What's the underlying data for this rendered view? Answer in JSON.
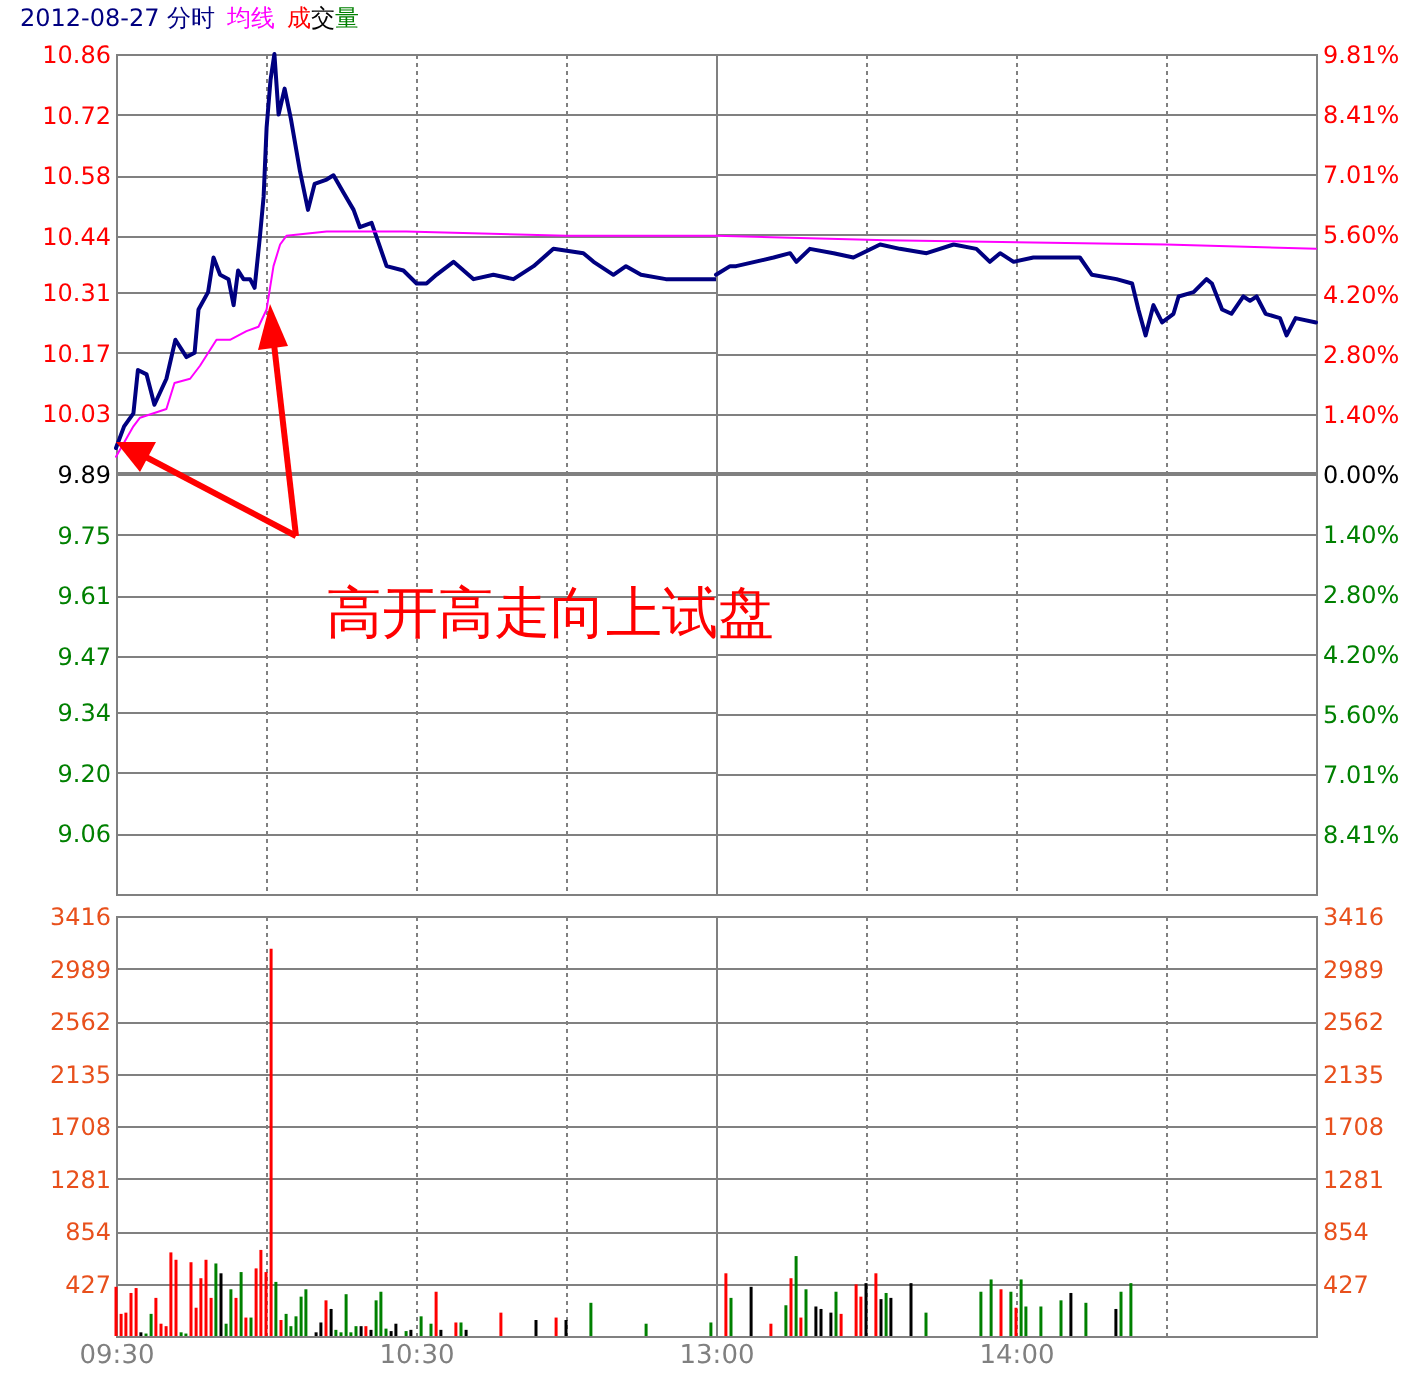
{
  "chart_data": [
    {
      "type": "line",
      "title": "2012-08-27 分时",
      "legend": "top",
      "grid": true,
      "tick_labels": "y",
      "annotations": [
        "高开高走向上试盘"
      ],
      "xlim": [
        9.5,
        11.5
      ],
      "xticks": [
        9.5,
        10,
        10.5,
        11
      ],
      "ylim": [
        8.92,
        10.86
      ],
      "yticks": [
        9.06,
        {
          "value": 9.2,
          "label": "9.20"
        },
        9.34,
        9.47,
        9.61,
        9.75,
        9.89,
        10.03,
        10.17,
        10.31,
        10.44,
        10.58,
        10.72,
        10.86
      ],
      "ref_lines": [
        {
          "axis": "y",
          "value": 9.89,
          "color": "#808080"
        }
      ],
      "series": [
        {
          "color": "#000080",
          "x": [
            9.5,
            9.527,
            9.558,
            9.573,
            9.602,
            9.628,
            9.668,
            9.698,
            9.735,
            9.762,
            9.775,
            9.807,
            9.825,
            9.847,
            9.875,
            9.892,
            9.907,
            9.925,
            9.947,
            9.962,
            9.98,
            9.992,
            10.002,
            10.015,
            10.028,
            10.042,
            10.062,
            10.083,
            10.113,
            10.14,
            10.162,
            10.202,
            10.225,
            10.258,
            10.292,
            10.313,
            10.352,
            10.402,
            10.458,
            10.502,
            10.535,
            10.568,
            10.625,
            10.692,
            10.758,
            10.825,
            10.892,
            10.958,
            11.058,
            11.092,
            11.158,
            11.2,
            11.25,
            11.333,
            11.5
          ],
          "values": [
            9.95,
            10.0,
            10.03,
            10.13,
            10.12,
            10.05,
            10.11,
            10.2,
            10.16,
            10.17,
            10.27,
            10.31,
            10.39,
            10.35,
            10.34,
            10.28,
            10.36,
            10.34,
            10.34,
            10.32,
            10.44,
            10.53,
            10.69,
            10.8,
            10.86,
            10.72,
            10.78,
            10.71,
            10.59,
            10.5,
            10.56,
            10.57,
            10.58,
            10.54,
            10.5,
            10.46,
            10.47,
            10.37,
            10.36,
            10.33,
            10.33,
            10.35,
            10.38,
            10.34,
            10.35,
            10.34,
            10.37,
            10.41,
            10.4,
            10.38,
            10.35,
            10.37,
            10.35,
            10.34,
            10.34
          ]
        },
        {
          "name": "均线",
          "color": "#ff00ff",
          "x": [
            9.5,
            9.558,
            9.58,
            9.668,
            9.695,
            9.747,
            9.78,
            9.835,
            9.88,
            9.935,
            9.975,
            10.002,
            10.025,
            10.047,
            10.068,
            10.202,
            10.292,
            10.468,
            11.002,
            11.5
          ],
          "values": [
            9.93,
            10.0,
            10.02,
            10.04,
            10.1,
            10.11,
            10.14,
            10.2,
            10.2,
            10.22,
            10.23,
            10.27,
            10.37,
            10.42,
            10.44,
            10.45,
            10.45,
            10.45,
            10.44,
            10.44
          ]
        }
      ]
    },
    {
      "type": "line",
      "grid": true,
      "tick_labels": "y",
      "xlim": [
        13,
        15
      ],
      "xticks": [
        13,
        13.5,
        14,
        14.5
      ],
      "ylim": [
        8.92,
        10.86
      ],
      "y2lim": [
        -9.81,
        9.81
      ],
      "y2ticks": [
        {
          "value": -8.41,
          "label": "8.41%"
        },
        {
          "value": -7.01,
          "label": "7.01%"
        },
        {
          "value": -5.6,
          "label": "5.60%"
        },
        {
          "value": -4.2,
          "label": "4.20%"
        },
        {
          "value": -2.8,
          "label": "2.80%"
        },
        {
          "value": -1.4,
          "label": "1.40%"
        },
        {
          "value": 0,
          "label": "0.00%"
        },
        {
          "value": 1.4,
          "label": "1.40%"
        },
        {
          "value": 2.8,
          "label": "2.80%"
        },
        {
          "value": 4.2,
          "label": "4.20%"
        },
        {
          "value": 5.6,
          "label": "5.60%"
        },
        {
          "value": 7.01,
          "label": "7.01%"
        },
        {
          "value": 8.41,
          "label": "8.41%"
        },
        {
          "value": 9.81,
          "label": "9.81%"
        }
      ],
      "ref_lines": [
        {
          "axis": "y",
          "value": 9.89,
          "color": "#808080"
        }
      ],
      "series": [
        {
          "color": "#000080",
          "x": [
            13,
            13.047,
            13.067,
            13.192,
            13.247,
            13.268,
            13.313,
            13.392,
            13.458,
            13.547,
            13.613,
            13.702,
            13.792,
            13.868,
            13.913,
            13.947,
            13.992,
            14.058,
            14.135,
            14.213,
            14.253,
            14.335,
            14.387,
            14.408,
            14.432,
            14.458,
            14.487,
            14.525,
            14.542,
            14.592,
            14.635,
            14.653,
            14.687,
            14.718,
            14.758,
            14.78,
            14.802,
            14.832,
            14.88,
            14.902,
            14.932,
            15
          ],
          "values": [
            10.35,
            10.37,
            10.37,
            10.39,
            10.4,
            10.38,
            10.41,
            10.4,
            10.39,
            10.42,
            10.41,
            10.4,
            10.42,
            10.41,
            10.38,
            10.4,
            10.38,
            10.39,
            10.39,
            10.39,
            10.35,
            10.34,
            10.33,
            10.27,
            10.21,
            10.28,
            10.24,
            10.26,
            10.3,
            10.31,
            10.34,
            10.33,
            10.27,
            10.26,
            10.3,
            10.29,
            10.3,
            10.26,
            10.25,
            10.21,
            10.25,
            10.24
          ]
        },
        {
          "color": "#ff00ff",
          "x": [
            13,
            13.567,
            14.5,
            15
          ],
          "values": [
            10.44,
            10.43,
            10.42,
            10.41
          ]
        }
      ]
    },
    {
      "type": "bar",
      "legend": "top",
      "grid": true,
      "xlim": [
        9.5,
        11.5
      ],
      "xticks": [
        {
          "value": 9.5,
          "label": "09:30"
        },
        {
          "value": 10,
          "label": null
        },
        {
          "value": 10.5,
          "label": "10:30"
        },
        {
          "value": 11,
          "label": null
        }
      ],
      "ylim": [
        0,
        3416
      ],
      "yticks": [
        427,
        854,
        1281,
        1708,
        2135,
        2562,
        2989,
        3416
      ],
      "series": [
        {
          "name": "成交量",
          "x": [
            9.5,
            9.517,
            9.533,
            9.55,
            9.567,
            9.583,
            9.6,
            9.617,
            9.633,
            9.65,
            9.667,
            9.683,
            9.7,
            9.717,
            9.733,
            9.75,
            9.767,
            9.783,
            9.8,
            9.817,
            9.833,
            9.85,
            9.867,
            9.883,
            9.9,
            9.917,
            9.933,
            9.95,
            9.967,
            9.983,
            10,
            10.017,
            10.033,
            10.05,
            10.067,
            10.083,
            10.1,
            10.117,
            10.133,
            10.167,
            10.183,
            10.2,
            10.217,
            10.233,
            10.25,
            10.267,
            10.283,
            10.3,
            10.317,
            10.333,
            10.35,
            10.367,
            10.383,
            10.4,
            10.417,
            10.433,
            10.467,
            10.483,
            10.517,
            10.55,
            10.567,
            10.583,
            10.633,
            10.65,
            10.667,
            10.783,
            10.9,
            10.967,
            11,
            11.083,
            11.267,
            11.483
          ],
          "values": [
            400,
            180,
            190,
            350,
            390,
            30,
            20,
            180,
            310,
            100,
            80,
            680,
            620,
            30,
            20,
            600,
            230,
            470,
            620,
            310,
            590,
            510,
            100,
            380,
            310,
            520,
            150,
            150,
            550,
            700,
            520,
            3150,
            440,
            130,
            180,
            80,
            160,
            320,
            380,
            30,
            110,
            290,
            220,
            50,
            30,
            340,
            30,
            80,
            80,
            80,
            50,
            290,
            360,
            60,
            40,
            100,
            40,
            50,
            160,
            100,
            360,
            50,
            110,
            110,
            50,
            190,
            130,
            150,
            130,
            270,
            100,
            110
          ],
          "colors": [
            "#ff0000",
            "#ff0000",
            "#ff0000",
            "#ff0000",
            "#ff0000",
            "#000000",
            "#008000",
            "#008000",
            "#ff0000",
            "#ff0000",
            "#ff0000",
            "#ff0000",
            "#ff0000",
            "#008000",
            "#008000",
            "#ff0000",
            "#ff0000",
            "#ff0000",
            "#ff0000",
            "#ff0000",
            "#008000",
            "#000000",
            "#008000",
            "#008000",
            "#ff0000",
            "#008000",
            "#ff0000",
            "#008000",
            "#ff0000",
            "#ff0000",
            "#ff0000",
            "#ff0000",
            "#008000",
            "#ff0000",
            "#008000",
            "#008000",
            "#008000",
            "#008000",
            "#008000",
            "#000000",
            "#000000",
            "#ff0000",
            "#000000",
            "#008000",
            "#008000",
            "#008000",
            "#008000",
            "#008000",
            "#000000",
            "#ff0000",
            "#000000",
            "#008000",
            "#008000",
            "#008000",
            "#000000",
            "#000000",
            "#008000",
            "#000000",
            "#008000",
            "#008000",
            "#ff0000",
            "#000000",
            "#ff0000",
            "#008000",
            "#000000",
            "#ff0000",
            "#000000",
            "#ff0000",
            "#000000",
            "#008000",
            "#008000",
            "#008000"
          ]
        }
      ]
    },
    {
      "type": "bar",
      "grid": true,
      "xlim": [
        13,
        15
      ],
      "xticks": [
        {
          "value": 13,
          "label": "13:00"
        },
        {
          "value": 13.5,
          "label": null
        },
        {
          "value": 14,
          "label": "14:00"
        },
        {
          "value": 14.5,
          "label": null
        }
      ],
      "y2lim": [
        0,
        3416
      ],
      "y2ticks": [
        427,
        854,
        1281,
        1708,
        2135,
        2562,
        2989,
        3416
      ],
      "series": [
        {
          "axis": "y2",
          "x": [
            13.033,
            13.05,
            13.117,
            13.183,
            13.233,
            13.25,
            13.267,
            13.283,
            13.3,
            13.333,
            13.35,
            13.383,
            13.4,
            13.417,
            13.467,
            13.483,
            13.5,
            13.533,
            13.55,
            13.567,
            13.583,
            13.65,
            13.7,
            13.883,
            13.917,
            13.95,
            13.983,
            14,
            14.017,
            14.033,
            14.083,
            14.15,
            14.183,
            14.233,
            14.333,
            14.35,
            14.383
          ],
          "values": [
            510,
            310,
            400,
            100,
            250,
            470,
            650,
            150,
            380,
            240,
            220,
            190,
            360,
            180,
            420,
            320,
            430,
            510,
            300,
            350,
            310,
            430,
            190,
            360,
            460,
            380,
            360,
            230,
            460,
            240,
            240,
            290,
            350,
            270,
            220,
            360,
            430
          ],
          "colors": [
            "#ff0000",
            "#008000",
            "#000000",
            "#ff0000",
            "#008000",
            "#ff0000",
            "#008000",
            "#ff0000",
            "#008000",
            "#000000",
            "#000000",
            "#000000",
            "#008000",
            "#ff0000",
            "#ff0000",
            "#ff0000",
            "#000000",
            "#ff0000",
            "#000000",
            "#008000",
            "#000000",
            "#000000",
            "#008000",
            "#008000",
            "#008000",
            "#ff0000",
            "#008000",
            "#ff0000",
            "#008000",
            "#008000",
            "#008000",
            "#008000",
            "#000000",
            "#008000",
            "#000000",
            "#008000",
            "#008000"
          ]
        }
      ]
    }
  ]
}
